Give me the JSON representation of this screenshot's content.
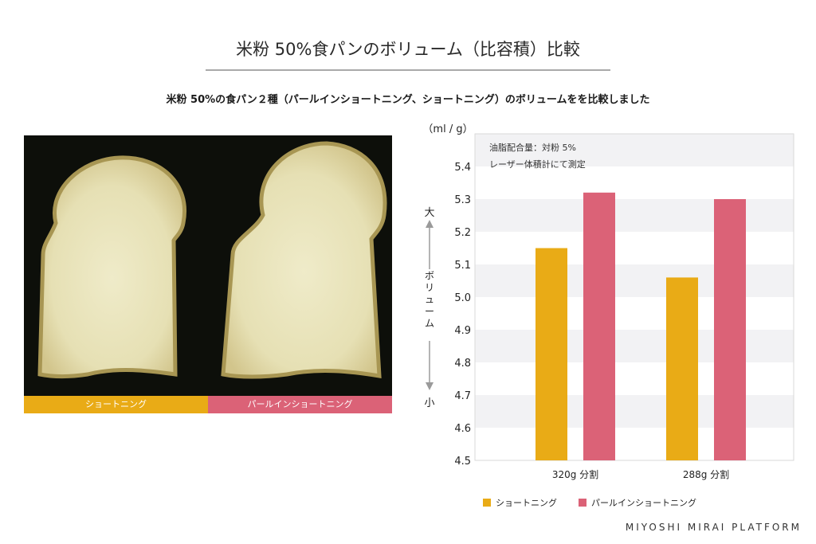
{
  "header": {
    "title": "米粉 50%食パンのボリューム（比容積）比較",
    "subtitle": "米粉 50%の食パン２種（パールインショートニング、ショートニング）のボリュームをを比較しました"
  },
  "photo": {
    "labels": [
      "ショートニング",
      "パールインショートニング"
    ]
  },
  "chart_data": {
    "type": "bar",
    "unit_label": "（ml / g）",
    "annotation": [
      "油脂配合量：対粉 5%",
      "レーザー体積計にて測定"
    ],
    "axis_indicator": {
      "top": "大",
      "middle": "ボリューム",
      "bottom": "小"
    },
    "categories": [
      "320g 分割",
      "288g 分割"
    ],
    "series": [
      {
        "name": "ショートニング",
        "values": [
          5.15,
          5.06
        ]
      },
      {
        "name": "パールインショートニング",
        "values": [
          5.32,
          5.3
        ]
      }
    ],
    "ylim": [
      4.5,
      5.5
    ],
    "yticks": [
      4.5,
      4.6,
      4.7,
      4.8,
      4.9,
      5.0,
      5.1,
      5.2,
      5.3,
      5.4
    ],
    "grid": "alternating-bands",
    "legend_placement": "bottom"
  },
  "colors": {
    "shortening": "#e9ab16",
    "pearl": "#db6277",
    "band": "#f2f2f4"
  },
  "footer": {
    "brand": "MIYOSHI MIRAI PLATFORM"
  }
}
